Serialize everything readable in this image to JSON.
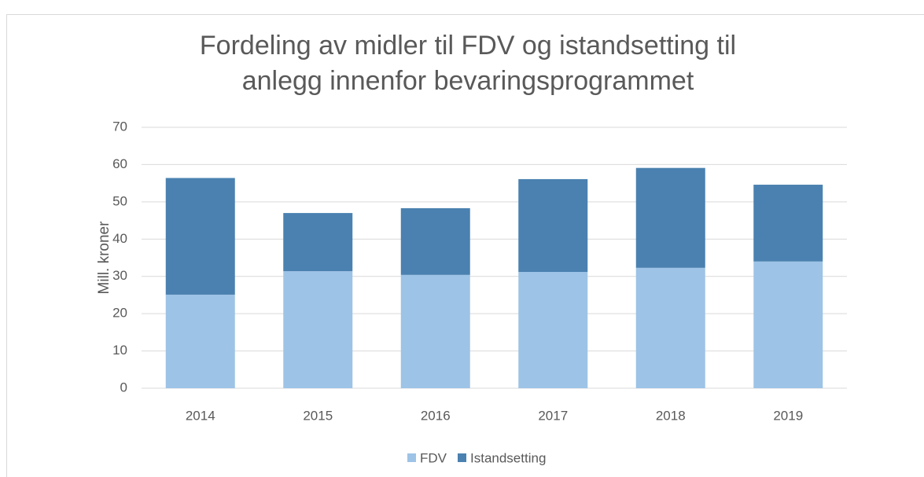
{
  "chart_data": {
    "type": "bar",
    "stacked": true,
    "title": [
      "Fordeling av midler til FDV og istandsetting til",
      "anlegg innenfor bevaringsprogrammet"
    ],
    "y_label": "Mill. kroner",
    "categories": [
      "2014",
      "2015",
      "2016",
      "2017",
      "2018",
      "2019"
    ],
    "series": [
      {
        "name": "FDV",
        "color": "#9dc3e6",
        "values": [
          25.1,
          31.4,
          30.4,
          31.2,
          32.3,
          34.0
        ]
      },
      {
        "name": "Istandsetting",
        "color": "#4a81b0",
        "values": [
          31.3,
          15.6,
          17.9,
          24.9,
          26.8,
          20.6
        ]
      }
    ],
    "ylim": [
      0,
      70
    ],
    "yticks": [
      0,
      10,
      20,
      30,
      40,
      50,
      60,
      70
    ],
    "grid": true,
    "legend": "bottom"
  }
}
